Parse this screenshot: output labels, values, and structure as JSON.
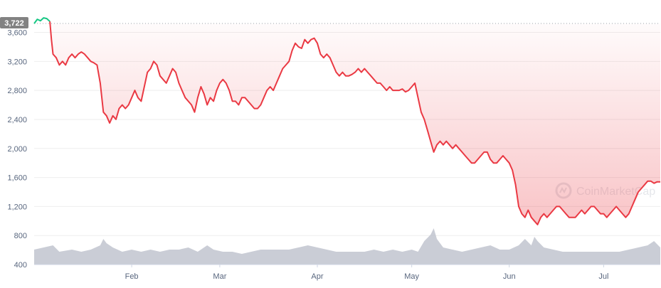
{
  "colors": {
    "price_down": "#ea3943",
    "price_up": "#16c784",
    "area_fill_top": "#ea3943",
    "volume": "#b8bcc8",
    "grid": "#eeeeee",
    "axis_text": "#58667e",
    "start_badge": "#828282",
    "start_badge_text": "#ffffff",
    "watermark": "#e5e7eb"
  },
  "watermark": {
    "text": "CoinMarketCap",
    "icon": "coinmarketcap-logo-icon"
  },
  "start_marker": {
    "label": "3,722",
    "value": 3722
  },
  "chart_data": {
    "type": "line",
    "title": "",
    "xlabel": "",
    "ylabel": "",
    "ylim": [
      400,
      3850
    ],
    "yticks": [
      400,
      800,
      1200,
      1600,
      2000,
      2400,
      2800,
      3200,
      3600
    ],
    "ytick_labels": [
      "400",
      "800",
      "1,200",
      "1,600",
      "2,000",
      "2,400",
      "2,800",
      "3,200",
      "3,600"
    ],
    "xlim": [
      0,
      199
    ],
    "xticks": [
      {
        "label": "Feb",
        "x": 31
      },
      {
        "label": "Mar",
        "x": 59
      },
      {
        "label": "Apr",
        "x": 90
      },
      {
        "label": "May",
        "x": 120
      },
      {
        "label": "Jun",
        "x": 151
      },
      {
        "label": "Jul",
        "x": 181
      }
    ],
    "grid": true,
    "legend": "none",
    "series": [
      {
        "kind": "price",
        "points": [
          [
            0,
            3722
          ],
          [
            1,
            3780
          ],
          [
            2,
            3760
          ],
          [
            3,
            3800
          ],
          [
            4,
            3790
          ],
          [
            5,
            3750
          ],
          [
            5.5,
            3500
          ],
          [
            6,
            3300
          ],
          [
            7,
            3250
          ],
          [
            8,
            3150
          ],
          [
            9,
            3200
          ],
          [
            10,
            3150
          ],
          [
            11,
            3250
          ],
          [
            12,
            3300
          ],
          [
            13,
            3250
          ],
          [
            14,
            3300
          ],
          [
            15,
            3330
          ],
          [
            16,
            3300
          ],
          [
            17,
            3250
          ],
          [
            18,
            3200
          ],
          [
            19,
            3180
          ],
          [
            20,
            3150
          ],
          [
            21,
            2900
          ],
          [
            22,
            2500
          ],
          [
            23,
            2450
          ],
          [
            24,
            2350
          ],
          [
            25,
            2450
          ],
          [
            26,
            2400
          ],
          [
            27,
            2550
          ],
          [
            28,
            2600
          ],
          [
            29,
            2550
          ],
          [
            30,
            2600
          ],
          [
            31,
            2700
          ],
          [
            32,
            2800
          ],
          [
            33,
            2700
          ],
          [
            34,
            2650
          ],
          [
            35,
            2850
          ],
          [
            36,
            3050
          ],
          [
            37,
            3100
          ],
          [
            38,
            3200
          ],
          [
            39,
            3150
          ],
          [
            40,
            3000
          ],
          [
            41,
            2950
          ],
          [
            42,
            2900
          ],
          [
            43,
            3000
          ],
          [
            44,
            3100
          ],
          [
            45,
            3050
          ],
          [
            46,
            2900
          ],
          [
            47,
            2800
          ],
          [
            48,
            2700
          ],
          [
            49,
            2650
          ],
          [
            50,
            2600
          ],
          [
            51,
            2500
          ],
          [
            52,
            2700
          ],
          [
            53,
            2850
          ],
          [
            54,
            2750
          ],
          [
            55,
            2600
          ],
          [
            56,
            2700
          ],
          [
            57,
            2650
          ],
          [
            58,
            2800
          ],
          [
            59,
            2900
          ],
          [
            60,
            2950
          ],
          [
            61,
            2900
          ],
          [
            62,
            2800
          ],
          [
            63,
            2650
          ],
          [
            64,
            2650
          ],
          [
            65,
            2600
          ],
          [
            66,
            2700
          ],
          [
            67,
            2700
          ],
          [
            68,
            2650
          ],
          [
            69,
            2600
          ],
          [
            70,
            2550
          ],
          [
            71,
            2550
          ],
          [
            72,
            2600
          ],
          [
            73,
            2700
          ],
          [
            74,
            2800
          ],
          [
            75,
            2850
          ],
          [
            76,
            2800
          ],
          [
            77,
            2900
          ],
          [
            78,
            3000
          ],
          [
            79,
            3100
          ],
          [
            80,
            3150
          ],
          [
            81,
            3200
          ],
          [
            82,
            3350
          ],
          [
            83,
            3450
          ],
          [
            84,
            3400
          ],
          [
            85,
            3380
          ],
          [
            86,
            3500
          ],
          [
            87,
            3450
          ],
          [
            88,
            3500
          ],
          [
            89,
            3520
          ],
          [
            90,
            3450
          ],
          [
            91,
            3300
          ],
          [
            92,
            3250
          ],
          [
            93,
            3300
          ],
          [
            94,
            3250
          ],
          [
            95,
            3150
          ],
          [
            96,
            3050
          ],
          [
            97,
            3000
          ],
          [
            98,
            3050
          ],
          [
            99,
            3000
          ],
          [
            100,
            3000
          ],
          [
            101,
            3020
          ],
          [
            102,
            3050
          ],
          [
            103,
            3100
          ],
          [
            104,
            3050
          ],
          [
            105,
            3100
          ],
          [
            106,
            3050
          ],
          [
            107,
            3000
          ],
          [
            108,
            2950
          ],
          [
            109,
            2900
          ],
          [
            110,
            2900
          ],
          [
            111,
            2850
          ],
          [
            112,
            2800
          ],
          [
            113,
            2850
          ],
          [
            114,
            2800
          ],
          [
            115,
            2800
          ],
          [
            116,
            2800
          ],
          [
            117,
            2820
          ],
          [
            118,
            2780
          ],
          [
            119,
            2800
          ],
          [
            120,
            2850
          ],
          [
            121,
            2900
          ],
          [
            122,
            2700
          ],
          [
            123,
            2500
          ],
          [
            124,
            2400
          ],
          [
            125,
            2250
          ],
          [
            126,
            2100
          ],
          [
            127,
            1950
          ],
          [
            128,
            2050
          ],
          [
            129,
            2100
          ],
          [
            130,
            2050
          ],
          [
            131,
            2100
          ],
          [
            132,
            2050
          ],
          [
            133,
            2000
          ],
          [
            134,
            2050
          ],
          [
            135,
            2000
          ],
          [
            136,
            1950
          ],
          [
            137,
            1900
          ],
          [
            138,
            1850
          ],
          [
            139,
            1800
          ],
          [
            140,
            1800
          ],
          [
            141,
            1850
          ],
          [
            142,
            1900
          ],
          [
            143,
            1950
          ],
          [
            144,
            1950
          ],
          [
            145,
            1850
          ],
          [
            146,
            1800
          ],
          [
            147,
            1800
          ],
          [
            148,
            1850
          ],
          [
            149,
            1900
          ],
          [
            150,
            1850
          ],
          [
            151,
            1800
          ],
          [
            152,
            1700
          ],
          [
            153,
            1500
          ],
          [
            154,
            1200
          ],
          [
            155,
            1100
          ],
          [
            156,
            1050
          ],
          [
            157,
            1150
          ],
          [
            158,
            1050
          ],
          [
            159,
            1000
          ],
          [
            160,
            950
          ],
          [
            161,
            1050
          ],
          [
            162,
            1100
          ],
          [
            163,
            1050
          ],
          [
            164,
            1100
          ],
          [
            165,
            1150
          ],
          [
            166,
            1200
          ],
          [
            167,
            1200
          ],
          [
            168,
            1150
          ],
          [
            169,
            1100
          ],
          [
            170,
            1050
          ],
          [
            171,
            1050
          ],
          [
            172,
            1050
          ],
          [
            173,
            1100
          ],
          [
            174,
            1150
          ],
          [
            175,
            1100
          ],
          [
            176,
            1150
          ],
          [
            177,
            1200
          ],
          [
            178,
            1200
          ],
          [
            179,
            1150
          ],
          [
            180,
            1100
          ],
          [
            181,
            1100
          ],
          [
            182,
            1050
          ],
          [
            183,
            1100
          ],
          [
            184,
            1150
          ],
          [
            185,
            1200
          ],
          [
            186,
            1150
          ],
          [
            187,
            1100
          ],
          [
            188,
            1050
          ],
          [
            189,
            1100
          ],
          [
            190,
            1200
          ],
          [
            191,
            1300
          ],
          [
            192,
            1400
          ],
          [
            193,
            1450
          ],
          [
            194,
            1500
          ],
          [
            195,
            1550
          ],
          [
            196,
            1550
          ],
          [
            197,
            1520
          ],
          [
            198,
            1540
          ],
          [
            199,
            1540
          ]
        ]
      },
      {
        "kind": "volume",
        "points": [
          [
            0,
            0.35
          ],
          [
            3,
            0.4
          ],
          [
            6,
            0.45
          ],
          [
            8,
            0.3
          ],
          [
            12,
            0.35
          ],
          [
            15,
            0.3
          ],
          [
            18,
            0.35
          ],
          [
            21,
            0.45
          ],
          [
            22,
            0.6
          ],
          [
            23,
            0.5
          ],
          [
            25,
            0.4
          ],
          [
            28,
            0.3
          ],
          [
            31,
            0.35
          ],
          [
            34,
            0.3
          ],
          [
            37,
            0.35
          ],
          [
            40,
            0.3
          ],
          [
            43,
            0.35
          ],
          [
            46,
            0.35
          ],
          [
            49,
            0.4
          ],
          [
            52,
            0.3
          ],
          [
            55,
            0.45
          ],
          [
            57,
            0.35
          ],
          [
            60,
            0.3
          ],
          [
            63,
            0.3
          ],
          [
            66,
            0.25
          ],
          [
            69,
            0.3
          ],
          [
            72,
            0.35
          ],
          [
            75,
            0.35
          ],
          [
            78,
            0.35
          ],
          [
            81,
            0.35
          ],
          [
            84,
            0.4
          ],
          [
            87,
            0.45
          ],
          [
            90,
            0.4
          ],
          [
            93,
            0.35
          ],
          [
            96,
            0.3
          ],
          [
            99,
            0.3
          ],
          [
            102,
            0.3
          ],
          [
            105,
            0.3
          ],
          [
            108,
            0.35
          ],
          [
            111,
            0.3
          ],
          [
            114,
            0.35
          ],
          [
            117,
            0.3
          ],
          [
            120,
            0.35
          ],
          [
            122,
            0.3
          ],
          [
            124,
            0.55
          ],
          [
            126,
            0.7
          ],
          [
            127,
            0.85
          ],
          [
            128,
            0.6
          ],
          [
            130,
            0.4
          ],
          [
            133,
            0.35
          ],
          [
            136,
            0.3
          ],
          [
            139,
            0.35
          ],
          [
            142,
            0.4
          ],
          [
            145,
            0.45
          ],
          [
            148,
            0.35
          ],
          [
            151,
            0.35
          ],
          [
            154,
            0.45
          ],
          [
            156,
            0.6
          ],
          [
            158,
            0.45
          ],
          [
            159,
            0.65
          ],
          [
            160,
            0.55
          ],
          [
            162,
            0.4
          ],
          [
            165,
            0.35
          ],
          [
            168,
            0.3
          ],
          [
            171,
            0.3
          ],
          [
            174,
            0.3
          ],
          [
            177,
            0.3
          ],
          [
            180,
            0.3
          ],
          [
            183,
            0.3
          ],
          [
            186,
            0.3
          ],
          [
            189,
            0.35
          ],
          [
            192,
            0.4
          ],
          [
            195,
            0.45
          ],
          [
            197,
            0.55
          ],
          [
            199,
            0.4
          ]
        ]
      }
    ]
  }
}
